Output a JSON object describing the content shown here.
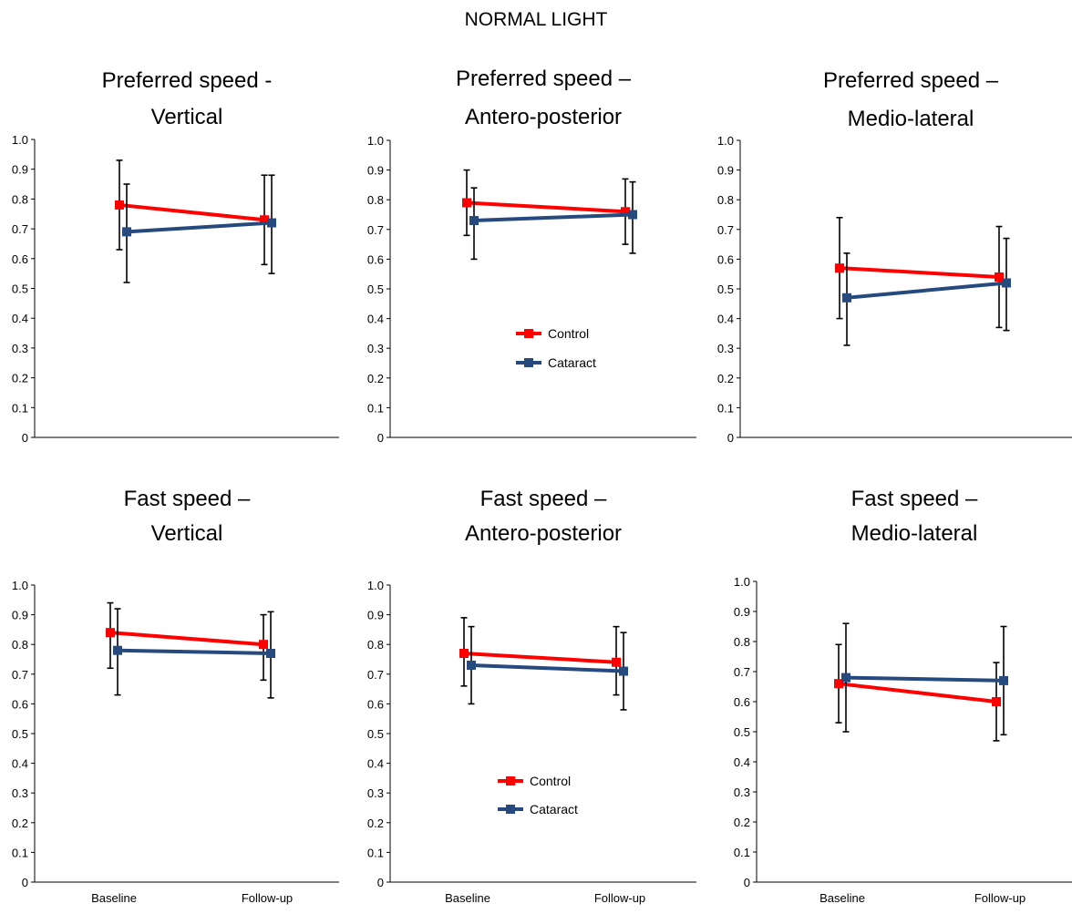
{
  "figure": {
    "title": "NORMAL LIGHT"
  },
  "chart_data": [
    {
      "type": "line",
      "title": "Preferred speed - Vertical",
      "title_lines": [
        "Preferred speed -",
        "Vertical"
      ],
      "categories": [
        "Baseline",
        "Follow-up"
      ],
      "show_category_labels": false,
      "ylim": [
        0,
        1.0
      ],
      "yticks": [
        "0",
        "0.1",
        "0.2",
        "0.3",
        "0.4",
        "0.5",
        "0.6",
        "0.7",
        "0.8",
        "0.9",
        "1.0"
      ],
      "series": [
        {
          "name": "Control",
          "color": "#ff0000",
          "values": [
            0.78,
            0.73
          ],
          "err_low": [
            0.63,
            0.58
          ],
          "err_high": [
            0.93,
            0.88
          ]
        },
        {
          "name": "Cataract",
          "color": "#264a7e",
          "values": [
            0.69,
            0.72
          ],
          "err_low": [
            0.52,
            0.55
          ],
          "err_high": [
            0.85,
            0.88
          ]
        }
      ],
      "legend": false
    },
    {
      "type": "line",
      "title": "Preferred speed – Antero-posterior",
      "title_lines": [
        "Preferred speed –",
        "Antero-posterior"
      ],
      "categories": [
        "Baseline",
        "Follow-up"
      ],
      "show_category_labels": false,
      "ylim": [
        0,
        1.0
      ],
      "yticks": [
        "0",
        "0.1",
        "0.2",
        "0.3",
        "0.4",
        "0.5",
        "0.6",
        "0.7",
        "0.8",
        "0.9",
        "1.0"
      ],
      "series": [
        {
          "name": "Control",
          "color": "#ff0000",
          "values": [
            0.79,
            0.76
          ],
          "err_low": [
            0.68,
            0.65
          ],
          "err_high": [
            0.9,
            0.87
          ]
        },
        {
          "name": "Cataract",
          "color": "#264a7e",
          "values": [
            0.73,
            0.75
          ],
          "err_low": [
            0.6,
            0.62
          ],
          "err_high": [
            0.84,
            0.86
          ]
        }
      ],
      "legend": true,
      "legend_labels": [
        "Control",
        "Cataract"
      ]
    },
    {
      "type": "line",
      "title": "Preferred speed – Medio-lateral",
      "title_lines": [
        "Preferred speed –",
        "Medio-lateral"
      ],
      "categories": [
        "Baseline",
        "Follow-up"
      ],
      "show_category_labels": false,
      "ylim": [
        0,
        1.0
      ],
      "yticks": [
        "0",
        "0.1",
        "0.2",
        "0.3",
        "0.4",
        "0.5",
        "0.6",
        "0.7",
        "0.8",
        "0.9",
        "1.0"
      ],
      "series": [
        {
          "name": "Control",
          "color": "#ff0000",
          "values": [
            0.57,
            0.54
          ],
          "err_low": [
            0.4,
            0.37
          ],
          "err_high": [
            0.74,
            0.71
          ]
        },
        {
          "name": "Cataract",
          "color": "#264a7e",
          "values": [
            0.47,
            0.52
          ],
          "err_low": [
            0.31,
            0.36
          ],
          "err_high": [
            0.62,
            0.67
          ]
        }
      ],
      "legend": false
    },
    {
      "type": "line",
      "title": "Fast speed – Vertical",
      "title_lines": [
        "Fast speed –",
        "Vertical"
      ],
      "categories": [
        "Baseline",
        "Follow-up"
      ],
      "show_category_labels": true,
      "ylim": [
        0,
        1.0
      ],
      "yticks": [
        "0",
        "0.1",
        "0.2",
        "0.3",
        "0.4",
        "0.5",
        "0.6",
        "0.7",
        "0.8",
        "0.9",
        "1.0"
      ],
      "series": [
        {
          "name": "Control",
          "color": "#ff0000",
          "values": [
            0.84,
            0.8
          ],
          "err_low": [
            0.72,
            0.68
          ],
          "err_high": [
            0.94,
            0.9
          ]
        },
        {
          "name": "Cataract",
          "color": "#264a7e",
          "values": [
            0.78,
            0.77
          ],
          "err_low": [
            0.63,
            0.62
          ],
          "err_high": [
            0.92,
            0.91
          ]
        }
      ],
      "legend": false
    },
    {
      "type": "line",
      "title": "Fast speed – Antero-posterior",
      "title_lines": [
        "Fast speed –",
        "Antero-posterior"
      ],
      "categories": [
        "Baseline",
        "Follow-up"
      ],
      "show_category_labels": true,
      "ylim": [
        0,
        1.0
      ],
      "yticks": [
        "0",
        "0.1",
        "0.2",
        "0.3",
        "0.4",
        "0.5",
        "0.6",
        "0.7",
        "0.8",
        "0.9",
        "1.0"
      ],
      "series": [
        {
          "name": "Control",
          "color": "#ff0000",
          "values": [
            0.77,
            0.74
          ],
          "err_low": [
            0.66,
            0.63
          ],
          "err_high": [
            0.89,
            0.86
          ]
        },
        {
          "name": "Cataract",
          "color": "#264a7e",
          "values": [
            0.73,
            0.71
          ],
          "err_low": [
            0.6,
            0.58
          ],
          "err_high": [
            0.86,
            0.84
          ]
        }
      ],
      "legend": true,
      "legend_labels": [
        "Control",
        "Cataract"
      ]
    },
    {
      "type": "line",
      "title": "Fast speed – Medio-lateral",
      "title_lines": [
        "Fast speed –",
        "Medio-lateral"
      ],
      "categories": [
        "Baseline",
        "Follow-up"
      ],
      "show_category_labels": true,
      "ylim": [
        0,
        1.0
      ],
      "yticks": [
        "0",
        "0.1",
        "0.2",
        "0.3",
        "0.4",
        "0.5",
        "0.6",
        "0.7",
        "0.8",
        "0.9",
        "1.0"
      ],
      "series": [
        {
          "name": "Control",
          "color": "#ff0000",
          "values": [
            0.66,
            0.6
          ],
          "err_low": [
            0.53,
            0.47
          ],
          "err_high": [
            0.79,
            0.73
          ]
        },
        {
          "name": "Cataract",
          "color": "#264a7e",
          "values": [
            0.68,
            0.67
          ],
          "err_low": [
            0.5,
            0.49
          ],
          "err_high": [
            0.86,
            0.85
          ]
        }
      ],
      "legend": false
    }
  ]
}
